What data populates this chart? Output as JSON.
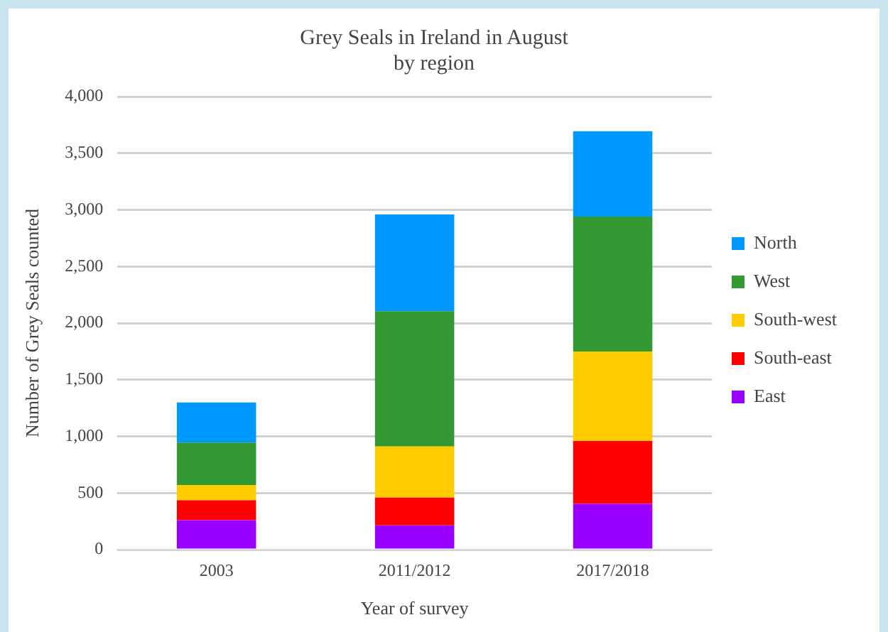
{
  "chart_data": {
    "type": "bar",
    "title": "Grey Seals in Ireland in August\nby region",
    "xlabel": "Year of survey",
    "ylabel": "Number of Grey Seals counted",
    "categories": [
      "2003",
      "2011/2012",
      "2017/2018"
    ],
    "stacked": true,
    "series": [
      {
        "name": "East",
        "color": "#9900ff",
        "values": [
          260,
          215,
          405
        ]
      },
      {
        "name": "South-east",
        "color": "#ff0000",
        "values": [
          175,
          245,
          555
        ]
      },
      {
        "name": "South-west",
        "color": "#ffcc00",
        "values": [
          135,
          450,
          790
        ]
      },
      {
        "name": "West",
        "color": "#339933",
        "values": [
          375,
          1195,
          1190
        ]
      },
      {
        "name": "North",
        "color": "#0099ff",
        "values": [
          355,
          855,
          755
        ]
      }
    ],
    "ylim": [
      0,
      4000
    ],
    "yticks": [
      {
        "value": 0,
        "label": "0"
      },
      {
        "value": 500,
        "label": "500"
      },
      {
        "value": 1000,
        "label": "1,000"
      },
      {
        "value": 1500,
        "label": "1,500"
      },
      {
        "value": 2000,
        "label": "2,000"
      },
      {
        "value": 2500,
        "label": "2,500"
      },
      {
        "value": 3000,
        "label": "3,000"
      },
      {
        "value": 3500,
        "label": "3,500"
      },
      {
        "value": 4000,
        "label": "4,000"
      }
    ],
    "grid": "y",
    "legend": "right"
  }
}
